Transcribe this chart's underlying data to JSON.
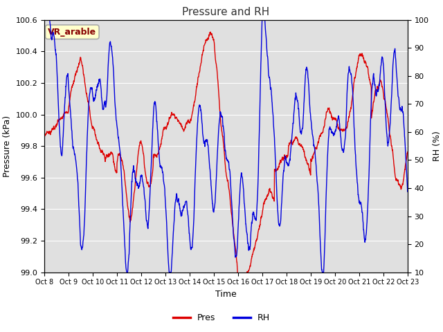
{
  "title": "Pressure and RH",
  "xlabel": "Time",
  "ylabel_left": "Pressure (kPa)",
  "ylabel_right": "RH (%)",
  "legend_label": "VR_arable",
  "pres_label": "Pres",
  "rh_label": "RH",
  "ylim_left": [
    99.0,
    100.6
  ],
  "ylim_right": [
    10,
    100
  ],
  "yticks_left": [
    99.0,
    99.2,
    99.4,
    99.6,
    99.8,
    100.0,
    100.2,
    100.4,
    100.6
  ],
  "yticks_right": [
    10,
    20,
    30,
    40,
    50,
    60,
    70,
    80,
    90,
    100
  ],
  "xtick_labels": [
    "Oct 8",
    "Oct 9",
    "Oct 10",
    "Oct 11",
    "Oct 12",
    "Oct 13",
    "Oct 14",
    "Oct 15",
    "Oct 16",
    "Oct 17",
    "Oct 18",
    "Oct 19",
    "Oct 20",
    "Oct 21",
    "Oct 22",
    "Oct 23"
  ],
  "n_days": 15,
  "background_color": "#e0e0e0",
  "pres_color": "#dd0000",
  "rh_color": "#0000dd",
  "title_color": "#333333",
  "box_facecolor": "#ffffcc",
  "box_edgecolor": "#aaaaaa",
  "label_color": "#880000",
  "grid_color": "#ffffff",
  "linewidth": 1.0
}
